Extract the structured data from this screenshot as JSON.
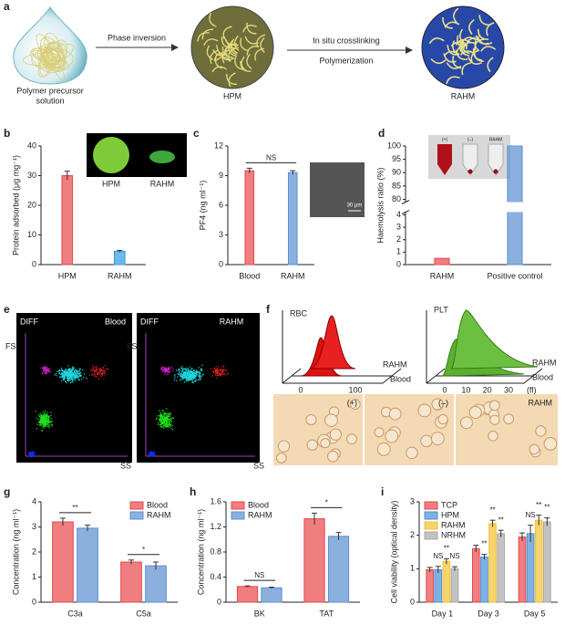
{
  "panel_letters": [
    "a",
    "b",
    "c",
    "d",
    "e",
    "f",
    "g",
    "h",
    "i"
  ],
  "a": {
    "steps": [
      "Phase inversion",
      "In situ crosslinking",
      "Polymerization"
    ],
    "stages": [
      [
        "Polymer precursor",
        "solution"
      ],
      [
        "HPM"
      ],
      [
        "RAHM"
      ]
    ]
  },
  "e": {
    "plots": [
      {
        "gate": "DIFF",
        "sample": "Blood",
        "y_axis": "FS",
        "x_axis": "SS"
      },
      {
        "gate": "DIFF",
        "sample": "RAHM",
        "y_axis": "FS",
        "x_axis": "SS"
      }
    ]
  },
  "f": {
    "histograms": [
      {
        "label": "RBC",
        "samples": [
          "RAHM",
          "Blood"
        ],
        "ticks": [
          0,
          100
        ]
      },
      {
        "label": "PLT",
        "samples": [
          "RAHM",
          "Blood"
        ],
        "ticks": [
          0,
          10,
          20,
          30
        ],
        "unit": "(fl)"
      }
    ],
    "micrographs": [
      "(+)",
      "(–)",
      "RAHM"
    ]
  },
  "chart_data": [
    {
      "type": "bar",
      "ylabel": "Protein adsorbed (μg mg⁻¹)",
      "categories": [
        "HPM",
        "RAHM"
      ],
      "values": [
        30,
        4.5
      ],
      "errors": [
        1.5,
        0.3
      ],
      "colors": [
        "#e8474a",
        "#2f9be0"
      ],
      "ylim": [
        0,
        40
      ],
      "yticks": [
        0,
        10,
        20,
        30,
        40
      ],
      "inset_labels": [
        "HPM",
        "RAHM"
      ]
    },
    {
      "type": "bar",
      "ylabel": "PF4 (ng ml⁻¹)",
      "categories": [
        "Blood",
        "RAHM"
      ],
      "values": [
        9.5,
        9.3
      ],
      "errors": [
        0.25,
        0.2
      ],
      "colors": [
        "#e8474a",
        "#5b8fd0"
      ],
      "ylim": [
        0,
        12
      ],
      "yticks": [
        0,
        3,
        6,
        9,
        12
      ],
      "annotations": [
        {
          "text": "NS",
          "categories": [
            "Blood",
            "RAHM"
          ]
        }
      ],
      "inset_labels": [
        "30 μm"
      ]
    },
    {
      "type": "bar",
      "ylabel": "Haemolysis ratio (%)",
      "categories": [
        "RAHM",
        "Positive control"
      ],
      "values": [
        0.5,
        100
      ],
      "colors": [
        "#e8474a",
        "#5b8fd0"
      ],
      "ylim": [
        0,
        100
      ],
      "axis_break": [
        4,
        80
      ],
      "yticks": [
        0,
        1,
        2,
        3,
        4,
        80,
        85,
        90,
        95,
        100
      ],
      "inset_labels": [
        "(+)",
        "(–)",
        "RAHM"
      ]
    },
    {
      "type": "bar",
      "ylabel": "Concentration (ng ml⁻¹)",
      "categories": [
        "C3a",
        "C5a"
      ],
      "series": [
        {
          "name": "Blood",
          "color": "#e8474a",
          "values": [
            3.2,
            1.6
          ],
          "errors": [
            0.15,
            0.08
          ]
        },
        {
          "name": "RAHM",
          "color": "#5b8fd0",
          "values": [
            2.95,
            1.45
          ],
          "errors": [
            0.12,
            0.15
          ]
        }
      ],
      "ylim": [
        0,
        4
      ],
      "yticks": [
        0,
        1,
        2,
        3,
        4
      ],
      "legend": "top-right",
      "annotations": [
        {
          "text": "**",
          "category": "C3a"
        },
        {
          "text": "*",
          "category": "C5a"
        }
      ]
    },
    {
      "type": "bar",
      "ylabel": "Concentration (ng ml⁻¹)",
      "categories": [
        "BK",
        "TAT"
      ],
      "series": [
        {
          "name": "Blood",
          "color": "#e8474a",
          "values": [
            0.25,
            1.33
          ],
          "errors": [
            0.01,
            0.09
          ]
        },
        {
          "name": "RAHM",
          "color": "#5b8fd0",
          "values": [
            0.23,
            1.05
          ],
          "errors": [
            0.01,
            0.06
          ]
        }
      ],
      "ylim": [
        0,
        1.6
      ],
      "yticks": [
        0,
        0.4,
        0.8,
        1.2,
        1.6
      ],
      "legend": "top-left",
      "annotations": [
        {
          "text": "NS",
          "category": "BK"
        },
        {
          "text": "*",
          "category": "TAT"
        }
      ]
    },
    {
      "type": "bar",
      "ylabel": "Cell viability (optical density)",
      "categories": [
        "Day 1",
        "Day 3",
        "Day 5"
      ],
      "series": [
        {
          "name": "TCP",
          "color": "#e8474a",
          "values": [
            0.97,
            1.6,
            1.95
          ],
          "errors": [
            0.07,
            0.1,
            0.12
          ]
        },
        {
          "name": "HPM",
          "color": "#4a90d9",
          "values": [
            0.97,
            1.35,
            2.05
          ],
          "errors": [
            0.1,
            0.08,
            0.25
          ]
        },
        {
          "name": "RAHM",
          "color": "#f2c230",
          "values": [
            1.22,
            2.35,
            2.45
          ],
          "errors": [
            0.08,
            0.1,
            0.15
          ]
        },
        {
          "name": "NRHM",
          "color": "#a8a8a8",
          "values": [
            1.0,
            2.05,
            2.4
          ],
          "errors": [
            0.06,
            0.1,
            0.12
          ]
        }
      ],
      "ylim": [
        0,
        3
      ],
      "yticks": [
        0,
        1,
        2,
        3
      ],
      "legend": "top-left",
      "annotations": [
        {
          "text": "NS",
          "category": "Day 1",
          "series": "HPM"
        },
        {
          "text": "**",
          "category": "Day 1",
          "series": "RAHM"
        },
        {
          "text": "NS",
          "category": "Day 1",
          "series": "NRHM"
        },
        {
          "text": "**",
          "category": "Day 3",
          "series": "HPM"
        },
        {
          "text": "**",
          "category": "Day 3",
          "series": "RAHM"
        },
        {
          "text": "**",
          "category": "Day 3",
          "series": "NRHM"
        },
        {
          "text": "NS",
          "category": "Day 5",
          "series": "HPM"
        },
        {
          "text": "**",
          "category": "Day 5",
          "series": "RAHM"
        },
        {
          "text": "**",
          "category": "Day 5",
          "series": "NRHM"
        }
      ]
    }
  ]
}
